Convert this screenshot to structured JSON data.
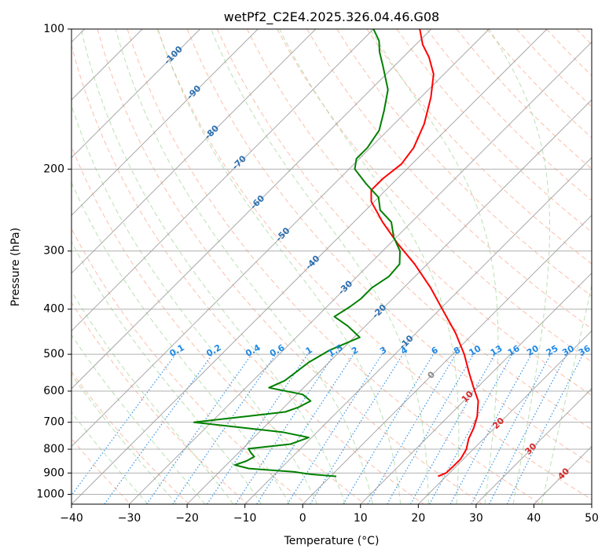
{
  "chart_data": {
    "type": "skew-t",
    "title": "wetPf2_C2E4.2025.326.04.46.G08",
    "xlabel": "Temperature (°C)",
    "ylabel": "Pressure (hPa)",
    "xlim": [
      -40,
      50
    ],
    "ylim": [
      1050,
      100
    ],
    "x_ticks": [
      "−40",
      "−30",
      "−20",
      "−10",
      "0",
      "10",
      "20",
      "30",
      "40",
      "50"
    ],
    "y_ticks": [
      "100",
      "200",
      "300",
      "400",
      "500",
      "600",
      "700",
      "800",
      "900",
      "1000"
    ],
    "grid": true,
    "colors": {
      "temperature": "#ff0000",
      "dewpoint": "#008000",
      "isotherm": "#9a9a9a",
      "dry_adiabat": "#f9a98f",
      "moist_adiabat": "#a9d8a0",
      "mixing_ratio": "#1e88e5",
      "isotherm_label": "#2c6fb0",
      "theta_label": "#d62728",
      "zero_label": "#888888"
    },
    "isotherm_labels": [
      "-100",
      "-90",
      "-80",
      "-70",
      "-60",
      "-50",
      "-40",
      "-30",
      "-20",
      "-10",
      "0",
      "10",
      "20",
      "30",
      "40"
    ],
    "mixing_ratio_labels": [
      "0.1",
      "0.2",
      "0.4",
      "0.6",
      "1",
      "1.5",
      "2",
      "3",
      "4",
      "6",
      "8",
      "10",
      "13",
      "16",
      "20",
      "25",
      "30",
      "36"
    ],
    "series": [
      {
        "name": "Temperature",
        "color": "#ff0000",
        "points": [
          {
            "p": 915,
            "t": 18.6
          },
          {
            "p": 900,
            "t": 19.4
          },
          {
            "p": 870,
            "t": 19.5
          },
          {
            "p": 840,
            "t": 19.5
          },
          {
            "p": 800,
            "t": 18.8
          },
          {
            "p": 760,
            "t": 17.4
          },
          {
            "p": 720,
            "t": 16.4
          },
          {
            "p": 680,
            "t": 15.0
          },
          {
            "p": 630,
            "t": 12.5
          },
          {
            "p": 590,
            "t": 9.4
          },
          {
            "p": 550,
            "t": 6.2
          },
          {
            "p": 500,
            "t": 2.0
          },
          {
            "p": 450,
            "t": -3.2
          },
          {
            "p": 400,
            "t": -9.6
          },
          {
            "p": 360,
            "t": -15.3
          },
          {
            "p": 320,
            "t": -22.2
          },
          {
            "p": 290,
            "t": -28.5
          },
          {
            "p": 260,
            "t": -35.0
          },
          {
            "p": 235,
            "t": -40.5
          },
          {
            "p": 222,
            "t": -42.5
          },
          {
            "p": 210,
            "t": -42.5
          },
          {
            "p": 195,
            "t": -41.8
          },
          {
            "p": 180,
            "t": -42.5
          },
          {
            "p": 160,
            "t": -44.8
          },
          {
            "p": 140,
            "t": -48.3
          },
          {
            "p": 125,
            "t": -51.8
          },
          {
            "p": 115,
            "t": -55.5
          },
          {
            "p": 108,
            "t": -58.8
          },
          {
            "p": 100,
            "t": -62.0
          }
        ]
      },
      {
        "name": "Dewpoint",
        "color": "#008000",
        "points": [
          {
            "p": 915,
            "t": 1.0
          },
          {
            "p": 905,
            "t": -4.0
          },
          {
            "p": 895,
            "t": -7.0
          },
          {
            "p": 880,
            "t": -15.5
          },
          {
            "p": 865,
            "t": -18.5
          },
          {
            "p": 848,
            "t": -17.2
          },
          {
            "p": 830,
            "t": -16.6
          },
          {
            "p": 815,
            "t": -17.8
          },
          {
            "p": 798,
            "t": -19.0
          },
          {
            "p": 780,
            "t": -12.5
          },
          {
            "p": 755,
            "t": -10.5
          },
          {
            "p": 735,
            "t": -16.0
          },
          {
            "p": 700,
            "t": -33.0
          },
          {
            "p": 680,
            "t": -25.0
          },
          {
            "p": 665,
            "t": -19.0
          },
          {
            "p": 650,
            "t": -17.5
          },
          {
            "p": 630,
            "t": -16.5
          },
          {
            "p": 610,
            "t": -19.0
          },
          {
            "p": 590,
            "t": -26.0
          },
          {
            "p": 570,
            "t": -24.5
          },
          {
            "p": 545,
            "t": -24.0
          },
          {
            "p": 520,
            "t": -23.5
          },
          {
            "p": 490,
            "t": -22.0
          },
          {
            "p": 460,
            "t": -19.0
          },
          {
            "p": 435,
            "t": -23.0
          },
          {
            "p": 415,
            "t": -27.0
          },
          {
            "p": 395,
            "t": -26.0
          },
          {
            "p": 380,
            "t": -25.5
          },
          {
            "p": 360,
            "t": -25.5
          },
          {
            "p": 340,
            "t": -24.5
          },
          {
            "p": 320,
            "t": -24.8
          },
          {
            "p": 300,
            "t": -27.0
          },
          {
            "p": 280,
            "t": -30.5
          },
          {
            "p": 260,
            "t": -33.5
          },
          {
            "p": 245,
            "t": -37.5
          },
          {
            "p": 230,
            "t": -40.0
          },
          {
            "p": 215,
            "t": -44.5
          },
          {
            "p": 200,
            "t": -49.0
          },
          {
            "p": 190,
            "t": -50.5
          },
          {
            "p": 180,
            "t": -50.5
          },
          {
            "p": 165,
            "t": -51.5
          },
          {
            "p": 150,
            "t": -54.0
          },
          {
            "p": 135,
            "t": -57.0
          },
          {
            "p": 120,
            "t": -62.0
          },
          {
            "p": 112,
            "t": -65.0
          },
          {
            "p": 106,
            "t": -67.0
          },
          {
            "p": 100,
            "t": -70.0
          }
        ]
      }
    ]
  }
}
